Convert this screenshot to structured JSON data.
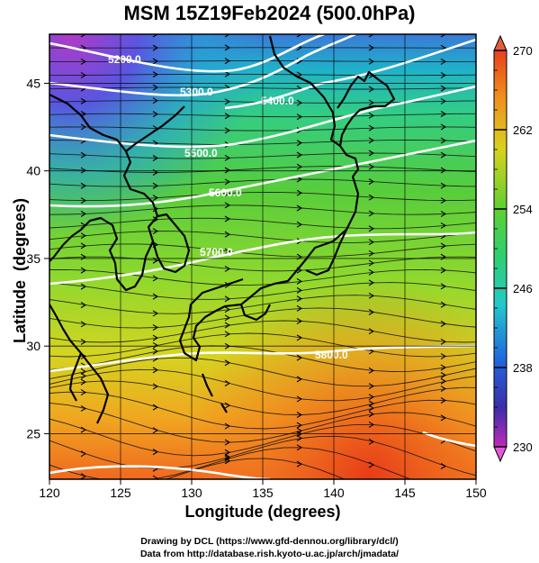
{
  "title": "MSM 15Z19Feb2024 (500.0hPa)",
  "map": {
    "xlabel": "Longitude (degrees)",
    "ylabel": "Latitude  (degrees)",
    "lon_range": [
      120,
      150
    ],
    "lat_range": [
      22.4,
      47.8
    ],
    "lon_ticks": [
      "120",
      "125",
      "130",
      "135",
      "140",
      "145",
      "150"
    ],
    "lat_ticks": [
      "25",
      "30",
      "35",
      "40",
      "45"
    ],
    "grid": true,
    "contour_labels": [
      "5200.0",
      "5300.0",
      "5400.0",
      "5500.0",
      "5600.0",
      "5700.0",
      "5800.0"
    ]
  },
  "colorbar": {
    "min": 230,
    "max": 270,
    "tick_labels": [
      "270",
      "262",
      "254",
      "246",
      "238",
      "230"
    ]
  },
  "credits": {
    "line1": "Drawing by DCL (https://www.gfd-dennou.org/library/dcl/)",
    "line2": "Data from http://database.rish.kyoto-u.ac.jp/arch/jmadata/"
  }
}
